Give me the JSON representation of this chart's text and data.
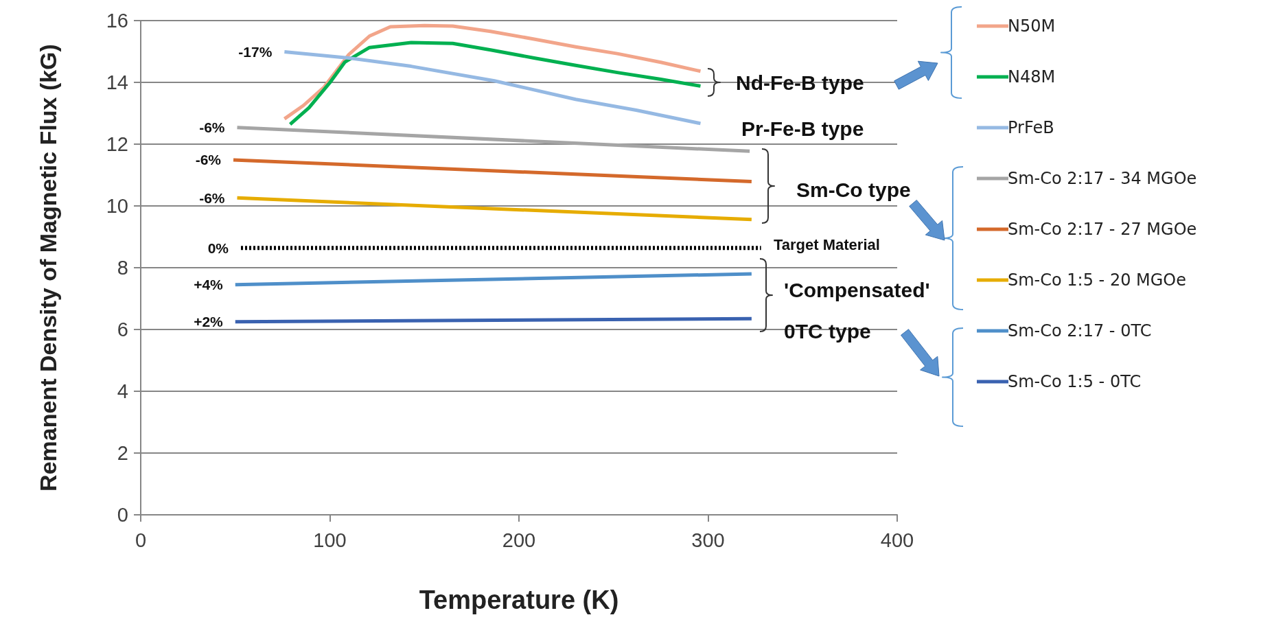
{
  "chart_data": {
    "type": "line",
    "xlabel": "Temperature (K)",
    "ylabel": "Remanent Density of Magnetic Flux (kG)",
    "xlim": [
      0,
      400
    ],
    "xticks": [
      0,
      100,
      200,
      300,
      400
    ],
    "ylim": [
      0,
      16
    ],
    "yticks": [
      0,
      2,
      4,
      6,
      8,
      10,
      12,
      14,
      16
    ],
    "grid": "y",
    "legend": "right",
    "marker": "none",
    "line_style": "solid",
    "series": [
      {
        "name": "N50M",
        "color": "#f2a58a",
        "x": [
          76,
          86,
          97,
          110,
          121,
          132,
          150,
          165,
          185,
          208,
          230,
          252,
          275,
          296
        ],
        "values": [
          12.82,
          13.25,
          13.85,
          14.9,
          15.5,
          15.8,
          15.84,
          15.82,
          15.65,
          15.4,
          15.15,
          14.93,
          14.65,
          14.36
        ]
      },
      {
        "name": "N48M",
        "color": "#00b050",
        "x": [
          79,
          89,
          100,
          108,
          121,
          143,
          165,
          185,
          208,
          230,
          252,
          275,
          296
        ],
        "values": [
          12.64,
          13.18,
          13.99,
          14.66,
          15.13,
          15.29,
          15.26,
          15.05,
          14.79,
          14.55,
          14.32,
          14.1,
          13.88
        ]
      },
      {
        "name": "PrFeB",
        "color": "#95b9e3",
        "x": [
          76,
          110,
          143,
          187,
          230,
          262,
          296
        ],
        "values": [
          14.99,
          14.79,
          14.52,
          14.05,
          13.45,
          13.1,
          12.67
        ]
      },
      {
        "name": "Sm-Co 2:17 - 34 MGOe",
        "color": "#a5a5a5",
        "x": [
          51,
          322
        ],
        "values": [
          12.54,
          11.77
        ]
      },
      {
        "name": "Sm-Co 2:17 - 27 MGOe",
        "color": "#d4692b",
        "x": [
          49,
          323
        ],
        "values": [
          11.49,
          10.79
        ]
      },
      {
        "name": "Sm-Co 1:5 - 20 MGOe",
        "color": "#e6ac00",
        "x": [
          51,
          323
        ],
        "values": [
          10.26,
          9.56
        ]
      },
      {
        "color": "#000000",
        "line_style": "dotted",
        "x": [
          53,
          328
        ],
        "values": [
          8.64,
          8.64
        ]
      },
      {
        "name": "Sm-Co 2:17 - 0TC",
        "color": "#4f8fc9",
        "x": [
          50,
          323
        ],
        "values": [
          7.45,
          7.8
        ]
      },
      {
        "name": "Sm-Co 1:5 - 0TC",
        "color": "#3a62b0",
        "x": [
          50,
          323
        ],
        "values": [
          6.25,
          6.35
        ]
      }
    ],
    "annotations": [
      {
        "text": "-17%",
        "x": 76,
        "y": 14.99
      },
      {
        "text": "-6%",
        "x": 51,
        "y": 12.54
      },
      {
        "text": "-6%",
        "x": 49,
        "y": 11.49
      },
      {
        "text": "-6%",
        "x": 51,
        "y": 10.26
      },
      {
        "text": "0%",
        "x": 53,
        "y": 8.64
      },
      {
        "text": "+4%",
        "x": 50,
        "y": 7.45
      },
      {
        "text": "+2%",
        "x": 50,
        "y": 6.25
      },
      "Nd-Fe-B type",
      "Pr-Fe-B type",
      "Sm-Co type",
      "Target Material",
      "'Compensated'\n0TC type"
    ]
  }
}
